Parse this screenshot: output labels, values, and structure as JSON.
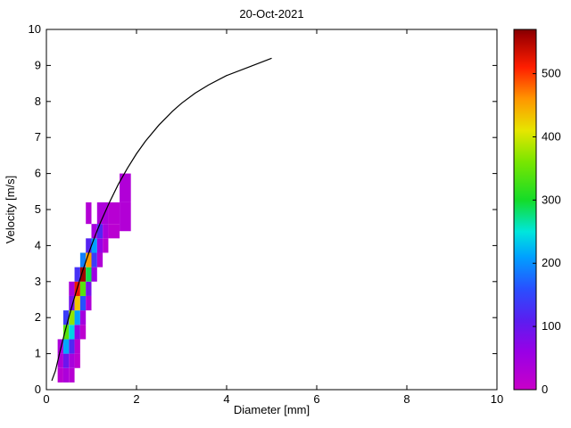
{
  "chart_data": {
    "type": "heatmap",
    "title": "20-Oct-2021",
    "xlabel": "Diameter [mm]",
    "ylabel": "Velocity [m/s]",
    "xlim": [
      0,
      10
    ],
    "ylim": [
      0,
      10
    ],
    "x_ticks": [
      0,
      2,
      4,
      6,
      8,
      10
    ],
    "y_ticks": [
      0,
      1,
      2,
      3,
      4,
      5,
      6,
      7,
      8,
      9,
      10
    ],
    "grid": false,
    "axis_color": "#000000",
    "background_color": "#ffffff",
    "colorbar": {
      "min": 0,
      "max": 570,
      "ticks": [
        0,
        100,
        200,
        300,
        400,
        500
      ],
      "position": "right"
    },
    "colormap_stops": [
      [
        0,
        "#C800C8"
      ],
      [
        60,
        "#9900E6"
      ],
      [
        110,
        "#5A1EF0"
      ],
      [
        160,
        "#2850FF"
      ],
      [
        210,
        "#00A0FF"
      ],
      [
        250,
        "#00E6DC"
      ],
      [
        300,
        "#14DC28"
      ],
      [
        360,
        "#78E600"
      ],
      [
        410,
        "#E6E600"
      ],
      [
        460,
        "#FF9600"
      ],
      [
        510,
        "#FF1E00"
      ],
      [
        560,
        "#A00000"
      ],
      [
        570,
        "#800000"
      ]
    ],
    "cells_format": [
      "d_min_mm",
      "d_max_mm",
      "v_min_ms",
      "v_max_ms",
      "count"
    ],
    "cells": [
      [
        0.25,
        0.375,
        0.2,
        0.6,
        18
      ],
      [
        0.375,
        0.5,
        0.2,
        0.6,
        35
      ],
      [
        0.5,
        0.625,
        0.2,
        0.6,
        22
      ],
      [
        0.25,
        0.375,
        0.6,
        1.0,
        28
      ],
      [
        0.375,
        0.5,
        0.6,
        1.0,
        95
      ],
      [
        0.5,
        0.625,
        0.6,
        1.0,
        40
      ],
      [
        0.625,
        0.75,
        0.6,
        1.0,
        15
      ],
      [
        0.25,
        0.375,
        1.0,
        1.4,
        35
      ],
      [
        0.375,
        0.5,
        1.0,
        1.4,
        215
      ],
      [
        0.5,
        0.625,
        1.0,
        1.4,
        120
      ],
      [
        0.625,
        0.75,
        1.0,
        1.4,
        20
      ],
      [
        0.375,
        0.5,
        1.4,
        1.8,
        340
      ],
      [
        0.5,
        0.625,
        1.4,
        1.8,
        240
      ],
      [
        0.625,
        0.75,
        1.4,
        1.8,
        70
      ],
      [
        0.75,
        0.875,
        1.4,
        1.8,
        15
      ],
      [
        0.375,
        0.5,
        1.8,
        2.2,
        140
      ],
      [
        0.5,
        0.625,
        1.8,
        2.2,
        370
      ],
      [
        0.625,
        0.75,
        1.8,
        2.2,
        210
      ],
      [
        0.75,
        0.875,
        1.8,
        2.2,
        45
      ],
      [
        0.5,
        0.625,
        2.2,
        2.6,
        90
      ],
      [
        0.625,
        0.75,
        2.2,
        2.6,
        430
      ],
      [
        0.75,
        0.875,
        2.2,
        2.6,
        160
      ],
      [
        0.875,
        1.0,
        2.2,
        2.6,
        30
      ],
      [
        0.5,
        0.625,
        2.6,
        3.0,
        40
      ],
      [
        0.625,
        0.75,
        2.6,
        3.0,
        520
      ],
      [
        0.75,
        0.875,
        2.6,
        3.0,
        340
      ],
      [
        0.875,
        1.0,
        2.6,
        3.0,
        85
      ],
      [
        0.625,
        0.75,
        3.0,
        3.4,
        130
      ],
      [
        0.75,
        0.875,
        3.0,
        3.4,
        560
      ],
      [
        0.875,
        1.0,
        3.0,
        3.4,
        290
      ],
      [
        1.0,
        1.125,
        3.0,
        3.4,
        55
      ],
      [
        0.75,
        0.875,
        3.4,
        3.8,
        190
      ],
      [
        0.875,
        1.0,
        3.4,
        3.8,
        455
      ],
      [
        1.0,
        1.125,
        3.4,
        3.8,
        140
      ],
      [
        1.125,
        1.25,
        3.4,
        3.8,
        30
      ],
      [
        0.875,
        1.0,
        3.8,
        4.2,
        115
      ],
      [
        1.0,
        1.125,
        3.8,
        4.2,
        210
      ],
      [
        1.125,
        1.25,
        3.8,
        4.2,
        60
      ],
      [
        1.25,
        1.375,
        3.8,
        4.2,
        20
      ],
      [
        1.0,
        1.125,
        4.2,
        4.6,
        45
      ],
      [
        1.125,
        1.25,
        4.2,
        4.6,
        120
      ],
      [
        1.25,
        1.375,
        4.2,
        4.6,
        40
      ],
      [
        1.375,
        1.625,
        4.2,
        4.6,
        18
      ],
      [
        0.875,
        1.0,
        4.6,
        5.2,
        25
      ],
      [
        1.125,
        1.375,
        4.6,
        5.2,
        35
      ],
      [
        1.375,
        1.625,
        4.6,
        5.2,
        22
      ],
      [
        1.625,
        1.875,
        4.4,
        5.2,
        28
      ],
      [
        1.625,
        1.875,
        5.2,
        6.0,
        30
      ]
    ],
    "curve": {
      "name": "terminal-velocity-curve",
      "color": "#000000",
      "points": [
        [
          0.12,
          0.25
        ],
        [
          0.2,
          0.52
        ],
        [
          0.3,
          1.05
        ],
        [
          0.4,
          1.55
        ],
        [
          0.5,
          2.02
        ],
        [
          0.6,
          2.46
        ],
        [
          0.7,
          2.88
        ],
        [
          0.8,
          3.28
        ],
        [
          0.9,
          3.65
        ],
        [
          1.0,
          4.0
        ],
        [
          1.1,
          4.33
        ],
        [
          1.2,
          4.64
        ],
        [
          1.4,
          5.2
        ],
        [
          1.6,
          5.71
        ],
        [
          1.8,
          6.15
        ],
        [
          2.0,
          6.55
        ],
        [
          2.2,
          6.9
        ],
        [
          2.5,
          7.35
        ],
        [
          2.8,
          7.73
        ],
        [
          3.0,
          7.95
        ],
        [
          3.3,
          8.23
        ],
        [
          3.6,
          8.46
        ],
        [
          4.0,
          8.72
        ],
        [
          4.5,
          8.96
        ],
        [
          5.0,
          9.2
        ]
      ]
    }
  }
}
